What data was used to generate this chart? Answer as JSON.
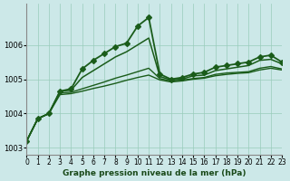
{
  "title": "Graphe pression niveau de la mer (hPa)",
  "background_color": "#cce8e8",
  "grid_color": "#99ccbb",
  "line_color": "#1a5c1a",
  "xlim": [
    0,
    23
  ],
  "ylim": [
    1002.8,
    1007.2
  ],
  "yticks": [
    1003,
    1004,
    1005,
    1006
  ],
  "xticks": [
    0,
    1,
    2,
    3,
    4,
    5,
    6,
    7,
    8,
    9,
    10,
    11,
    12,
    13,
    14,
    15,
    16,
    17,
    18,
    19,
    20,
    21,
    22,
    23
  ],
  "series": [
    {
      "x": [
        0,
        1,
        2,
        3,
        4,
        5,
        6,
        7,
        8,
        9,
        10,
        11,
        12,
        13,
        14,
        15,
        16,
        17,
        18,
        19,
        20,
        21,
        22,
        23
      ],
      "y": [
        1003.2,
        1003.85,
        1004.0,
        1004.65,
        1004.72,
        1005.3,
        1005.55,
        1005.75,
        1005.95,
        1006.05,
        1006.55,
        1006.8,
        1005.15,
        1005.0,
        1005.05,
        1005.15,
        1005.2,
        1005.35,
        1005.4,
        1005.45,
        1005.5,
        1005.65,
        1005.7,
        1005.5
      ],
      "marker": "D",
      "markersize": 3,
      "linewidth": 1.3
    },
    {
      "x": [
        0,
        1,
        2,
        3,
        4,
        5,
        6,
        7,
        8,
        9,
        10,
        11,
        12,
        13,
        14,
        15,
        16,
        17,
        18,
        19,
        20,
        21,
        22,
        23
      ],
      "y": [
        1003.2,
        1003.85,
        1004.0,
        1004.65,
        1004.68,
        1005.05,
        1005.25,
        1005.45,
        1005.65,
        1005.8,
        1006.0,
        1006.2,
        1005.08,
        1004.98,
        1005.0,
        1005.1,
        1005.12,
        1005.25,
        1005.3,
        1005.35,
        1005.4,
        1005.55,
        1005.58,
        1005.45
      ],
      "marker": null,
      "markersize": 0,
      "linewidth": 1.1
    },
    {
      "x": [
        0,
        1,
        2,
        3,
        4,
        5,
        6,
        7,
        8,
        9,
        10,
        11,
        12,
        13,
        14,
        15,
        16,
        17,
        18,
        19,
        20,
        21,
        22,
        23
      ],
      "y": [
        1003.2,
        1003.85,
        1004.0,
        1004.6,
        1004.62,
        1004.72,
        1004.82,
        1004.92,
        1005.03,
        1005.12,
        1005.22,
        1005.32,
        1005.02,
        1004.95,
        1004.97,
        1005.02,
        1005.05,
        1005.14,
        1005.18,
        1005.2,
        1005.22,
        1005.32,
        1005.37,
        1005.3
      ],
      "marker": null,
      "markersize": 0,
      "linewidth": 1.0
    },
    {
      "x": [
        0,
        1,
        2,
        3,
        4,
        5,
        6,
        7,
        8,
        9,
        10,
        11,
        12,
        13,
        14,
        15,
        16,
        17,
        18,
        19,
        20,
        21,
        22,
        23
      ],
      "y": [
        1003.2,
        1003.85,
        1004.0,
        1004.55,
        1004.58,
        1004.65,
        1004.73,
        1004.8,
        1004.88,
        1004.97,
        1005.05,
        1005.12,
        1004.98,
        1004.92,
        1004.95,
        1005.0,
        1005.03,
        1005.1,
        1005.14,
        1005.17,
        1005.19,
        1005.27,
        1005.32,
        1005.27
      ],
      "marker": null,
      "markersize": 0,
      "linewidth": 1.0
    }
  ]
}
